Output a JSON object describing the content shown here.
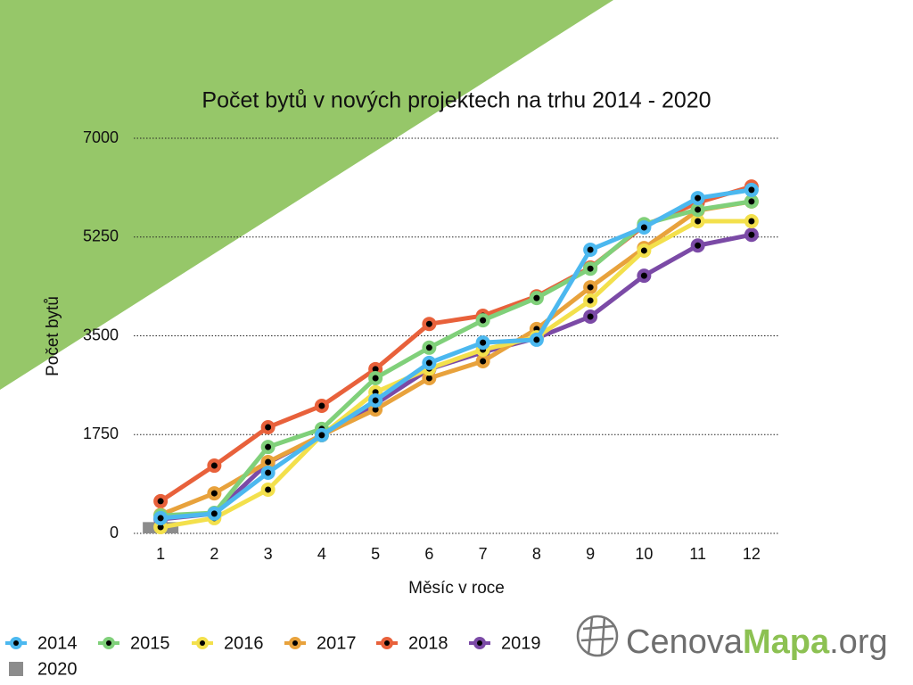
{
  "chart_data": {
    "type": "line",
    "title": "Počet bytů v nových projektech na trhu 2014 - 2020",
    "x_label": "Měsíc v roce",
    "y_label": "Počet bytů",
    "categories": [
      "1",
      "2",
      "3",
      "4",
      "5",
      "6",
      "7",
      "8",
      "9",
      "10",
      "11",
      "12"
    ],
    "ylim": [
      0,
      7000
    ],
    "yticks": [
      0,
      1750,
      3500,
      5250,
      7000
    ],
    "grid": true,
    "legend": "bottom",
    "series": [
      {
        "name": "2014",
        "color": "#4cb8ef",
        "values": [
          270,
          350,
          1075,
          1740,
          2355,
          3020,
          3380,
          3430,
          5025,
          5420,
          5940,
          6085
        ]
      },
      {
        "name": "2015",
        "color": "#80d07a",
        "values": [
          316,
          363,
          1530,
          1850,
          2750,
          3290,
          3775,
          4170,
          4690,
          5480,
          5735,
          5880
        ]
      },
      {
        "name": "2016",
        "color": "#f3e04c",
        "values": [
          110,
          270,
          775,
          1740,
          2500,
          2920,
          3255,
          3475,
          4125,
          5010,
          5530,
          5530
        ]
      },
      {
        "name": "2017",
        "color": "#e8a23c",
        "values": [
          330,
          710,
          1265,
          1740,
          2195,
          2750,
          3050,
          3620,
          4360,
          5055,
          5720,
          5880
        ]
      },
      {
        "name": "2018",
        "color": "#e8613b",
        "values": [
          570,
          1200,
          1880,
          2260,
          2910,
          3710,
          3855,
          4200,
          4710,
          5450,
          5860,
          6145
        ]
      },
      {
        "name": "2019",
        "color": "#7b4aa6",
        "values": [
          250,
          350,
          1250,
          1740,
          2290,
          2910,
          3210,
          3460,
          3840,
          4565,
          5100,
          5290
        ]
      },
      {
        "name": "2020",
        "color": "#8c8c8c",
        "marker": "square",
        "values": [
          200,
          null,
          null,
          null,
          null,
          null,
          null,
          null,
          null,
          null,
          null,
          null
        ]
      }
    ]
  },
  "logo": {
    "part1": "Cenova",
    "part2": "Mapa",
    "part3": ".org"
  }
}
